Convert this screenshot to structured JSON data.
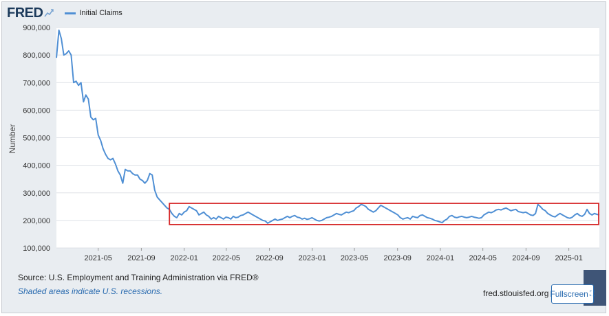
{
  "header": {
    "logo_text": "FRED",
    "logo_icon": "chart-logo-icon",
    "legend_label": "Initial Claims",
    "legend_color": "#4f8fd4"
  },
  "footer": {
    "source": "Source: U.S. Employment and Training Administration via FRED®",
    "note": "Shaded areas indicate U.S. recessions.",
    "site": "fred.stlouisfed.org",
    "fullscreen_label": "Fullscreen",
    "fullscreen_icon": "expand-icon"
  },
  "colors": {
    "line": "#4f8fd4",
    "highlight_box": "#d62728",
    "plot_bg": "#ffffff",
    "grid": "#dde1e6"
  },
  "chart_data": {
    "type": "line",
    "ylabel": "Number",
    "ylim": [
      100000,
      900000
    ],
    "y_ticks": [
      100000,
      200000,
      300000,
      400000,
      500000,
      600000,
      700000,
      800000,
      900000
    ],
    "y_tick_labels": [
      "100,000",
      "200,000",
      "300,000",
      "400,000",
      "500,000",
      "600,000",
      "700,000",
      "800,000",
      "900,000"
    ],
    "xlim": [
      "2021-01-02",
      "2025-03-29"
    ],
    "x_ticks": [
      "2021-05-01",
      "2021-09-01",
      "2022-01-01",
      "2022-05-01",
      "2022-09-01",
      "2023-01-01",
      "2023-05-01",
      "2023-09-01",
      "2024-01-01",
      "2024-05-01",
      "2024-09-01",
      "2025-01-01"
    ],
    "x_tick_labels": [
      "2021-05",
      "2021-09",
      "2022-01",
      "2022-05",
      "2022-09",
      "2023-01",
      "2023-05",
      "2023-09",
      "2024-01",
      "2024-05",
      "2024-09",
      "2025-01"
    ],
    "grid": true,
    "highlight_box": {
      "x_start": "2021-11-20",
      "x_end": "2025-03-29",
      "y_low": 185000,
      "y_high": 262000
    },
    "series": [
      {
        "name": "Initial Claims",
        "points": [
          [
            "2021-01-02",
            790000
          ],
          [
            "2021-01-09",
            890000
          ],
          [
            "2021-01-16",
            860000
          ],
          [
            "2021-01-23",
            800000
          ],
          [
            "2021-01-30",
            805000
          ],
          [
            "2021-02-06",
            815000
          ],
          [
            "2021-02-13",
            800000
          ],
          [
            "2021-02-20",
            700000
          ],
          [
            "2021-02-27",
            705000
          ],
          [
            "2021-03-06",
            690000
          ],
          [
            "2021-03-13",
            700000
          ],
          [
            "2021-03-20",
            630000
          ],
          [
            "2021-03-27",
            655000
          ],
          [
            "2021-04-03",
            640000
          ],
          [
            "2021-04-10",
            575000
          ],
          [
            "2021-04-17",
            565000
          ],
          [
            "2021-04-24",
            570000
          ],
          [
            "2021-05-01",
            510000
          ],
          [
            "2021-05-08",
            490000
          ],
          [
            "2021-05-15",
            460000
          ],
          [
            "2021-05-22",
            440000
          ],
          [
            "2021-05-29",
            425000
          ],
          [
            "2021-06-05",
            420000
          ],
          [
            "2021-06-12",
            425000
          ],
          [
            "2021-06-19",
            405000
          ],
          [
            "2021-06-26",
            380000
          ],
          [
            "2021-07-03",
            365000
          ],
          [
            "2021-07-10",
            335000
          ],
          [
            "2021-07-17",
            385000
          ],
          [
            "2021-07-24",
            380000
          ],
          [
            "2021-07-31",
            380000
          ],
          [
            "2021-08-07",
            370000
          ],
          [
            "2021-08-14",
            365000
          ],
          [
            "2021-08-21",
            365000
          ],
          [
            "2021-08-28",
            350000
          ],
          [
            "2021-09-04",
            345000
          ],
          [
            "2021-09-11",
            335000
          ],
          [
            "2021-09-18",
            345000
          ],
          [
            "2021-09-25",
            370000
          ],
          [
            "2021-10-02",
            365000
          ],
          [
            "2021-10-09",
            310000
          ],
          [
            "2021-10-16",
            285000
          ],
          [
            "2021-10-23",
            275000
          ],
          [
            "2021-10-30",
            265000
          ],
          [
            "2021-11-06",
            255000
          ],
          [
            "2021-11-13",
            245000
          ],
          [
            "2021-11-20",
            240000
          ],
          [
            "2021-11-27",
            225000
          ],
          [
            "2021-12-04",
            215000
          ],
          [
            "2021-12-11",
            210000
          ],
          [
            "2021-12-18",
            225000
          ],
          [
            "2021-12-25",
            220000
          ],
          [
            "2022-01-01",
            230000
          ],
          [
            "2022-01-08",
            235000
          ],
          [
            "2022-01-15",
            250000
          ],
          [
            "2022-01-22",
            245000
          ],
          [
            "2022-01-29",
            240000
          ],
          [
            "2022-02-05",
            235000
          ],
          [
            "2022-02-12",
            220000
          ],
          [
            "2022-02-19",
            225000
          ],
          [
            "2022-02-26",
            230000
          ],
          [
            "2022-03-05",
            220000
          ],
          [
            "2022-03-12",
            215000
          ],
          [
            "2022-03-19",
            205000
          ],
          [
            "2022-03-26",
            210000
          ],
          [
            "2022-04-02",
            205000
          ],
          [
            "2022-04-09",
            215000
          ],
          [
            "2022-04-16",
            210000
          ],
          [
            "2022-04-23",
            205000
          ],
          [
            "2022-04-30",
            212000
          ],
          [
            "2022-05-07",
            210000
          ],
          [
            "2022-05-14",
            205000
          ],
          [
            "2022-05-21",
            215000
          ],
          [
            "2022-05-28",
            210000
          ],
          [
            "2022-06-04",
            212000
          ],
          [
            "2022-06-11",
            218000
          ],
          [
            "2022-06-18",
            220000
          ],
          [
            "2022-06-25",
            225000
          ],
          [
            "2022-07-02",
            230000
          ],
          [
            "2022-07-09",
            225000
          ],
          [
            "2022-07-16",
            220000
          ],
          [
            "2022-07-23",
            215000
          ],
          [
            "2022-07-30",
            210000
          ],
          [
            "2022-08-06",
            205000
          ],
          [
            "2022-08-13",
            200000
          ],
          [
            "2022-08-20",
            198000
          ],
          [
            "2022-08-27",
            190000
          ],
          [
            "2022-09-03",
            195000
          ],
          [
            "2022-09-10",
            200000
          ],
          [
            "2022-09-17",
            205000
          ],
          [
            "2022-09-24",
            200000
          ],
          [
            "2022-10-01",
            203000
          ],
          [
            "2022-10-08",
            205000
          ],
          [
            "2022-10-15",
            210000
          ],
          [
            "2022-10-22",
            215000
          ],
          [
            "2022-10-29",
            210000
          ],
          [
            "2022-11-05",
            215000
          ],
          [
            "2022-11-12",
            218000
          ],
          [
            "2022-11-19",
            212000
          ],
          [
            "2022-11-26",
            210000
          ],
          [
            "2022-12-03",
            205000
          ],
          [
            "2022-12-10",
            208000
          ],
          [
            "2022-12-17",
            204000
          ],
          [
            "2022-12-24",
            206000
          ],
          [
            "2022-12-31",
            210000
          ],
          [
            "2023-01-07",
            205000
          ],
          [
            "2023-01-14",
            200000
          ],
          [
            "2023-01-21",
            198000
          ],
          [
            "2023-01-28",
            200000
          ],
          [
            "2023-02-04",
            205000
          ],
          [
            "2023-02-11",
            210000
          ],
          [
            "2023-02-18",
            212000
          ],
          [
            "2023-02-25",
            215000
          ],
          [
            "2023-03-04",
            220000
          ],
          [
            "2023-03-11",
            225000
          ],
          [
            "2023-03-18",
            222000
          ],
          [
            "2023-03-25",
            220000
          ],
          [
            "2023-04-01",
            225000
          ],
          [
            "2023-04-08",
            230000
          ],
          [
            "2023-04-15",
            228000
          ],
          [
            "2023-04-22",
            232000
          ],
          [
            "2023-04-29",
            235000
          ],
          [
            "2023-05-06",
            245000
          ],
          [
            "2023-05-13",
            250000
          ],
          [
            "2023-05-20",
            258000
          ],
          [
            "2023-05-27",
            255000
          ],
          [
            "2023-06-03",
            250000
          ],
          [
            "2023-06-10",
            240000
          ],
          [
            "2023-06-17",
            235000
          ],
          [
            "2023-06-24",
            230000
          ],
          [
            "2023-07-01",
            235000
          ],
          [
            "2023-07-08",
            245000
          ],
          [
            "2023-07-15",
            255000
          ],
          [
            "2023-07-22",
            250000
          ],
          [
            "2023-07-29",
            245000
          ],
          [
            "2023-08-05",
            240000
          ],
          [
            "2023-08-12",
            235000
          ],
          [
            "2023-08-19",
            230000
          ],
          [
            "2023-08-26",
            225000
          ],
          [
            "2023-09-02",
            220000
          ],
          [
            "2023-09-09",
            210000
          ],
          [
            "2023-09-16",
            205000
          ],
          [
            "2023-09-23",
            208000
          ],
          [
            "2023-09-30",
            210000
          ],
          [
            "2023-10-07",
            205000
          ],
          [
            "2023-10-14",
            215000
          ],
          [
            "2023-10-21",
            212000
          ],
          [
            "2023-10-28",
            210000
          ],
          [
            "2023-11-04",
            218000
          ],
          [
            "2023-11-11",
            220000
          ],
          [
            "2023-11-18",
            215000
          ],
          [
            "2023-11-25",
            210000
          ],
          [
            "2023-12-02",
            208000
          ],
          [
            "2023-12-09",
            205000
          ],
          [
            "2023-12-16",
            200000
          ],
          [
            "2023-12-23",
            198000
          ],
          [
            "2023-12-30",
            195000
          ],
          [
            "2024-01-06",
            192000
          ],
          [
            "2024-01-13",
            200000
          ],
          [
            "2024-01-20",
            205000
          ],
          [
            "2024-01-27",
            215000
          ],
          [
            "2024-02-03",
            218000
          ],
          [
            "2024-02-10",
            212000
          ],
          [
            "2024-02-17",
            210000
          ],
          [
            "2024-02-24",
            213000
          ],
          [
            "2024-03-02",
            215000
          ],
          [
            "2024-03-09",
            212000
          ],
          [
            "2024-03-16",
            210000
          ],
          [
            "2024-03-23",
            212000
          ],
          [
            "2024-03-30",
            215000
          ],
          [
            "2024-04-06",
            212000
          ],
          [
            "2024-04-13",
            210000
          ],
          [
            "2024-04-20",
            208000
          ],
          [
            "2024-04-27",
            210000
          ],
          [
            "2024-05-04",
            220000
          ],
          [
            "2024-05-11",
            225000
          ],
          [
            "2024-05-18",
            230000
          ],
          [
            "2024-05-25",
            228000
          ],
          [
            "2024-06-01",
            232000
          ],
          [
            "2024-06-08",
            238000
          ],
          [
            "2024-06-15",
            240000
          ],
          [
            "2024-06-22",
            238000
          ],
          [
            "2024-06-29",
            242000
          ],
          [
            "2024-07-06",
            245000
          ],
          [
            "2024-07-13",
            240000
          ],
          [
            "2024-07-20",
            235000
          ],
          [
            "2024-07-27",
            238000
          ],
          [
            "2024-08-03",
            240000
          ],
          [
            "2024-08-10",
            232000
          ],
          [
            "2024-08-17",
            230000
          ],
          [
            "2024-08-24",
            228000
          ],
          [
            "2024-08-31",
            230000
          ],
          [
            "2024-09-07",
            225000
          ],
          [
            "2024-09-14",
            220000
          ],
          [
            "2024-09-21",
            218000
          ],
          [
            "2024-09-28",
            225000
          ],
          [
            "2024-10-05",
            258000
          ],
          [
            "2024-10-12",
            250000
          ],
          [
            "2024-10-19",
            240000
          ],
          [
            "2024-10-26",
            235000
          ],
          [
            "2024-11-02",
            225000
          ],
          [
            "2024-11-09",
            220000
          ],
          [
            "2024-11-16",
            215000
          ],
          [
            "2024-11-23",
            213000
          ],
          [
            "2024-11-30",
            220000
          ],
          [
            "2024-12-07",
            225000
          ],
          [
            "2024-12-14",
            220000
          ],
          [
            "2024-12-21",
            215000
          ],
          [
            "2024-12-28",
            210000
          ],
          [
            "2025-01-04",
            208000
          ],
          [
            "2025-01-11",
            212000
          ],
          [
            "2025-01-18",
            220000
          ],
          [
            "2025-01-25",
            225000
          ],
          [
            "2025-02-01",
            218000
          ],
          [
            "2025-02-08",
            215000
          ],
          [
            "2025-02-15",
            222000
          ],
          [
            "2025-02-22",
            240000
          ],
          [
            "2025-03-01",
            225000
          ],
          [
            "2025-03-08",
            220000
          ],
          [
            "2025-03-15",
            225000
          ],
          [
            "2025-03-22",
            222000
          ],
          [
            "2025-03-29",
            220000
          ]
        ]
      }
    ]
  }
}
